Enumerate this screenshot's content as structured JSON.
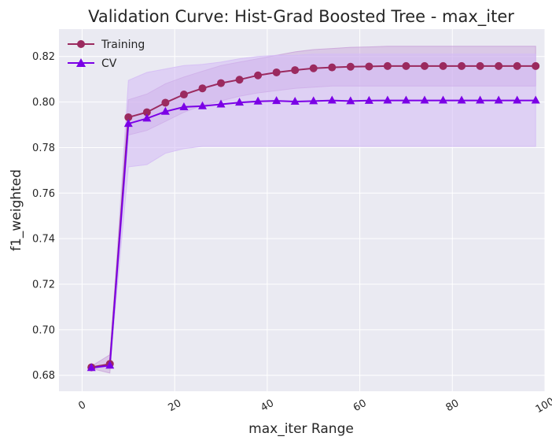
{
  "chart_data": {
    "type": "line",
    "title": "Validation Curve: Hist-Grad Boosted Tree - max_iter",
    "xlabel": "max_iter Range",
    "ylabel": "f1_weighted",
    "xlim": [
      -5,
      100
    ],
    "ylim": [
      0.673,
      0.832
    ],
    "xticks": [
      0,
      20,
      40,
      60,
      80,
      100
    ],
    "yticks": [
      0.68,
      0.7,
      0.72,
      0.74,
      0.76,
      0.78,
      0.8,
      0.82
    ],
    "grid": true,
    "legend_position": "top-left",
    "x": [
      2,
      6,
      10,
      14,
      18,
      22,
      26,
      30,
      34,
      38,
      42,
      46,
      50,
      54,
      58,
      62,
      66,
      70,
      74,
      78,
      82,
      86,
      90,
      94,
      98
    ],
    "series": [
      {
        "name": "Training",
        "color": "#9b2a5f",
        "band_color": "#c8a0d8",
        "marker": "circle",
        "values": [
          0.6835,
          0.685,
          0.7933,
          0.7955,
          0.7997,
          0.8033,
          0.806,
          0.8083,
          0.8098,
          0.8117,
          0.813,
          0.814,
          0.8148,
          0.8152,
          0.8155,
          0.8156,
          0.8158,
          0.8158,
          0.8158,
          0.8158,
          0.8158,
          0.8158,
          0.8158,
          0.8158,
          0.8158
        ],
        "lower": [
          0.683,
          0.681,
          0.7855,
          0.7875,
          0.7915,
          0.7955,
          0.7985,
          0.8005,
          0.8025,
          0.804,
          0.805,
          0.806,
          0.8065,
          0.807,
          0.807,
          0.807,
          0.807,
          0.807,
          0.807,
          0.807,
          0.807,
          0.807,
          0.807,
          0.807,
          0.807
        ],
        "upper": [
          0.684,
          0.689,
          0.801,
          0.8035,
          0.808,
          0.811,
          0.8135,
          0.816,
          0.8175,
          0.819,
          0.8205,
          0.822,
          0.823,
          0.8235,
          0.824,
          0.8242,
          0.8245,
          0.8245,
          0.8245,
          0.8245,
          0.8245,
          0.8245,
          0.8245,
          0.8245,
          0.8245
        ]
      },
      {
        "name": "CV",
        "color": "#7b00e6",
        "band_color": "#d3baf5",
        "marker": "triangle",
        "values": [
          0.6833,
          0.6843,
          0.7905,
          0.7928,
          0.7958,
          0.7978,
          0.7982,
          0.799,
          0.7998,
          0.8003,
          0.8005,
          0.8002,
          0.8004,
          0.8007,
          0.8004,
          0.8006,
          0.8007,
          0.8007,
          0.8007,
          0.8007,
          0.8007,
          0.8007,
          0.8007,
          0.8007,
          0.8007
        ],
        "lower": [
          0.683,
          0.6835,
          0.7715,
          0.7725,
          0.7775,
          0.7795,
          0.7805,
          0.7805,
          0.7805,
          0.7805,
          0.7805,
          0.7805,
          0.7805,
          0.7805,
          0.7805,
          0.7805,
          0.7805,
          0.7805,
          0.7805,
          0.7805,
          0.7805,
          0.7805,
          0.7805,
          0.7805,
          0.7805
        ],
        "upper": [
          0.6836,
          0.685,
          0.8095,
          0.813,
          0.8145,
          0.816,
          0.8165,
          0.8175,
          0.819,
          0.82,
          0.8205,
          0.8205,
          0.821,
          0.821,
          0.821,
          0.821,
          0.821,
          0.821,
          0.821,
          0.821,
          0.821,
          0.821,
          0.821,
          0.821,
          0.821
        ]
      }
    ]
  }
}
